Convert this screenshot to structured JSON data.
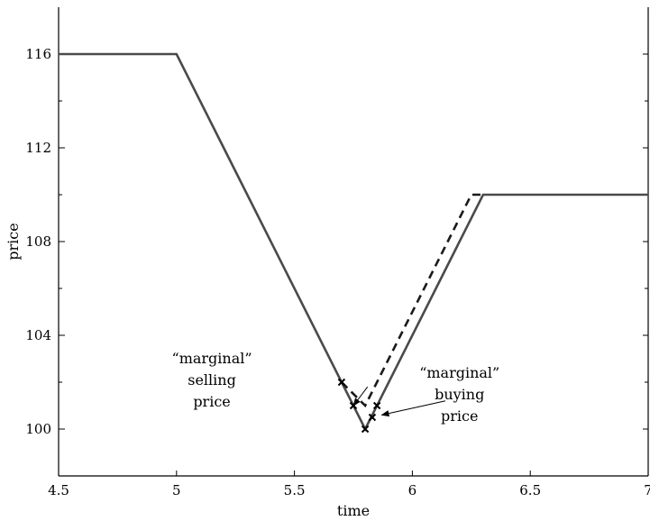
{
  "chart_data": {
    "type": "line",
    "title": "",
    "xlabel": "time",
    "ylabel": "price",
    "xlim": [
      4.5,
      7
    ],
    "ylim": [
      98,
      118
    ],
    "xticks": [
      {
        "value": 4.5,
        "label": "4.5"
      },
      {
        "value": 5,
        "label": "5"
      },
      {
        "value": 5.5,
        "label": "5.5"
      },
      {
        "value": 6,
        "label": "6"
      },
      {
        "value": 6.5,
        "label": "6.5"
      },
      {
        "value": 7,
        "label": "7"
      }
    ],
    "yticks": [
      {
        "value": 100,
        "label": "100"
      },
      {
        "value": 104,
        "label": "104"
      },
      {
        "value": 108,
        "label": "108"
      },
      {
        "value": 112,
        "label": "112"
      },
      {
        "value": 116,
        "label": "116"
      }
    ],
    "minor_yticks": [
      102,
      106,
      110,
      114
    ],
    "grid": false,
    "series": [
      {
        "style": "solid",
        "color": "#4a4a4a",
        "x": [
          4.5,
          5.0,
          5.8,
          6.3,
          7.0
        ],
        "y": [
          116,
          116,
          100,
          110,
          110
        ]
      },
      {
        "style": "dashed",
        "color": "#1a1a1a",
        "x": [
          5.7,
          5.8,
          6.25,
          6.3
        ],
        "y": [
          102,
          101,
          110,
          110
        ]
      }
    ],
    "markers": [
      {
        "x": 5.7,
        "y": 102
      },
      {
        "x": 5.75,
        "y": 101
      },
      {
        "x": 5.8,
        "y": 100
      },
      {
        "x": 5.83,
        "y": 100.5
      },
      {
        "x": 5.85,
        "y": 101
      }
    ],
    "annotations": [
      {
        "lines": [
          "“marginal”",
          "selling",
          "price"
        ],
        "text_pos": [
          5.15,
          102.8
        ],
        "arrow_from": [
          5.81,
          101.8
        ],
        "arrow_to": [
          5.75,
          101
        ]
      },
      {
        "lines": [
          "“marginal”",
          "buying",
          "price"
        ],
        "text_pos": [
          6.2,
          102.2
        ],
        "arrow_from": [
          6.14,
          101.2
        ],
        "arrow_to": [
          5.87,
          100.6
        ]
      }
    ]
  }
}
